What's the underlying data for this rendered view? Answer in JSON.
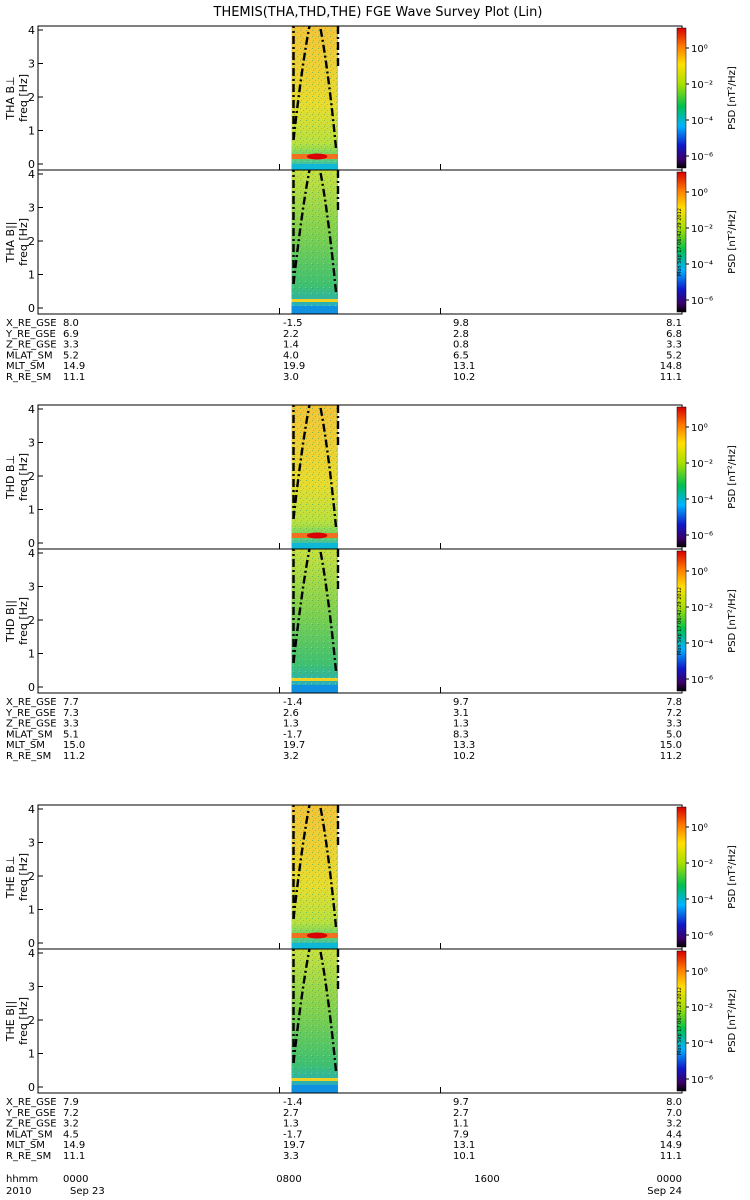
{
  "title": "THEMIS(THA,THD,THE) FGE Wave Survey Plot (Lin)",
  "freq_label": "freq [Hz]",
  "psd_label": "PSD [nT²/Hz]",
  "colorbar_ticks": [
    "10⁰",
    "10⁻²",
    "10⁻⁴",
    "10⁻⁶"
  ],
  "y_ticks": [
    "0",
    "1",
    "2",
    "3",
    "4"
  ],
  "stamp": "Mon Sep 17 06:42:29 2012",
  "chart_data": {
    "type": "heatmap",
    "x_axis": {
      "tick_labels": [
        {
          "hhmm": "0000",
          "date": "Sep 23"
        },
        {
          "hhmm": "0800",
          "date": ""
        },
        {
          "hhmm": "1600",
          "date": ""
        },
        {
          "hhmm": "0000",
          "date": "Sep 24"
        }
      ],
      "row_labels": [
        "hhmm",
        "2010"
      ]
    },
    "y_range": [
      0,
      4
    ],
    "colorbar": {
      "scale": "log",
      "range": [
        1e-07,
        10
      ],
      "label": "PSD [nT²/Hz]"
    },
    "data_interval_fraction": [
      0.375,
      0.5
    ],
    "probes": [
      {
        "name": "THA",
        "panels": [
          {
            "label": "THA B⊥"
          },
          {
            "label": "THA B||"
          }
        ],
        "ephemeris": [
          {
            "name": "X_RE_GSE",
            "values": [
              "8.0",
              "-1.5",
              "9.8",
              "8.1"
            ]
          },
          {
            "name": "Y_RE_GSE",
            "values": [
              "6.9",
              "2.2",
              "2.8",
              "6.8"
            ]
          },
          {
            "name": "Z_RE_GSE",
            "values": [
              "3.3",
              "1.4",
              "0.8",
              "3.3"
            ]
          },
          {
            "name": "MLAT_SM",
            "values": [
              "5.2",
              "4.0",
              "6.5",
              "5.2"
            ]
          },
          {
            "name": "MLT_SM",
            "values": [
              "14.9",
              "19.9",
              "13.1",
              "14.8"
            ]
          },
          {
            "name": "R_RE_SM",
            "values": [
              "11.1",
              "3.0",
              "10.2",
              "11.1"
            ]
          }
        ]
      },
      {
        "name": "THD",
        "panels": [
          {
            "label": "THD B⊥"
          },
          {
            "label": "THD B||"
          }
        ],
        "ephemeris": [
          {
            "name": "X_RE_GSE",
            "values": [
              "7.7",
              "-1.4",
              "9.7",
              "7.8"
            ]
          },
          {
            "name": "Y_RE_GSE",
            "values": [
              "7.3",
              "2.6",
              "3.1",
              "7.2"
            ]
          },
          {
            "name": "Z_RE_GSE",
            "values": [
              "3.3",
              "1.3",
              "1.3",
              "3.3"
            ]
          },
          {
            "name": "MLAT_SM",
            "values": [
              "5.1",
              "-1.7",
              "8.3",
              "5.0"
            ]
          },
          {
            "name": "MLT_SM",
            "values": [
              "15.0",
              "19.7",
              "13.3",
              "15.0"
            ]
          },
          {
            "name": "R_RE_SM",
            "values": [
              "11.2",
              "3.2",
              "10.2",
              "11.2"
            ]
          }
        ]
      },
      {
        "name": "THE",
        "panels": [
          {
            "label": "THE B⊥"
          },
          {
            "label": "THE B||"
          }
        ],
        "ephemeris": [
          {
            "name": "X_RE_GSE",
            "values": [
              "7.9",
              "-1.4",
              "9.7",
              "8.0"
            ]
          },
          {
            "name": "Y_RE_GSE",
            "values": [
              "7.2",
              "2.7",
              "2.7",
              "7.0"
            ]
          },
          {
            "name": "Z_RE_GSE",
            "values": [
              "3.2",
              "1.3",
              "1.1",
              "3.2"
            ]
          },
          {
            "name": "MLAT_SM",
            "values": [
              "4.5",
              "-1.7",
              "7.9",
              "4.4"
            ]
          },
          {
            "name": "MLT_SM",
            "values": [
              "14.9",
              "19.7",
              "13.1",
              "14.9"
            ]
          },
          {
            "name": "R_RE_SM",
            "values": [
              "11.1",
              "3.3",
              "10.1",
              "11.1"
            ]
          }
        ]
      }
    ]
  }
}
